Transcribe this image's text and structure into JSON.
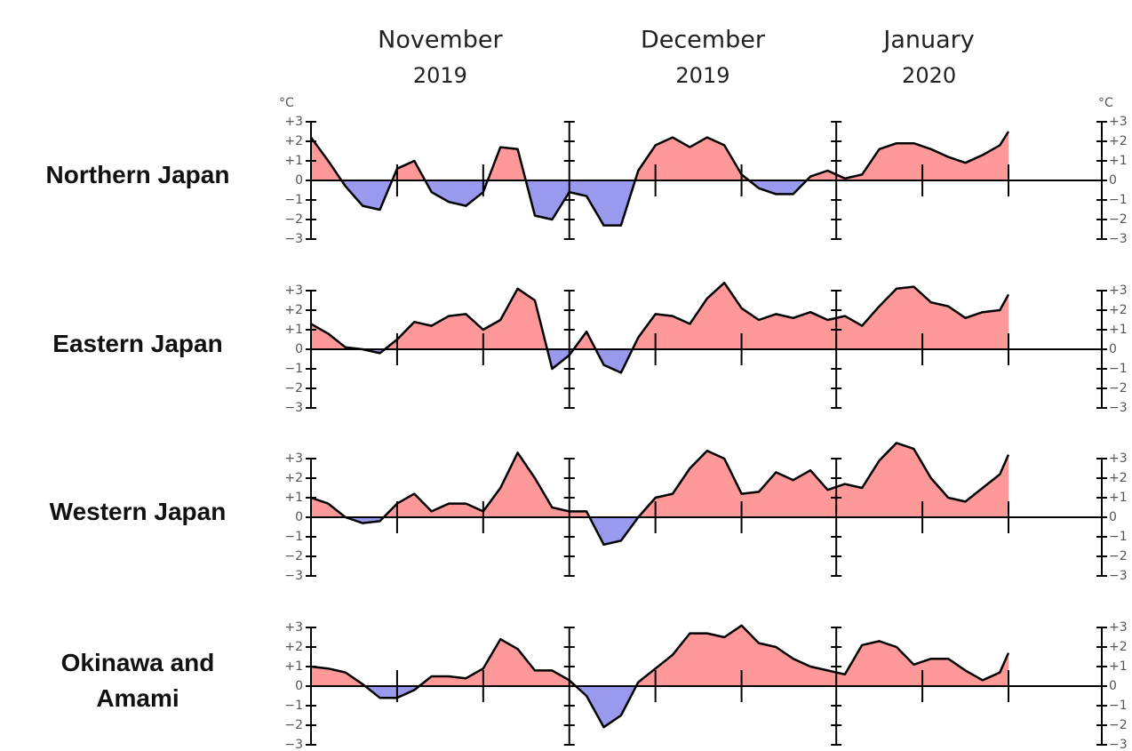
{
  "chart_data": {
    "type": "area",
    "unit": "°C",
    "x": [
      0,
      2,
      4,
      6,
      8,
      10,
      12,
      14,
      16,
      18,
      20,
      22,
      24,
      26,
      28,
      30,
      32,
      34,
      36,
      38,
      40,
      42,
      44,
      46,
      48,
      50,
      52,
      54,
      56,
      58,
      60,
      62,
      64,
      66,
      68,
      70,
      72,
      74,
      76,
      78,
      80,
      81
    ],
    "xlim": [
      0,
      81
    ],
    "xticks": [
      {
        "value": 0,
        "label": "November",
        "year": "2019"
      },
      {
        "value": 30,
        "label": "December",
        "year": "2019"
      },
      {
        "value": 61,
        "label": "January",
        "year": "2020"
      }
    ],
    "xminorticks": [
      10,
      20,
      40,
      50,
      71,
      81
    ],
    "ylim": [
      -3,
      3
    ],
    "yticks": [
      {
        "value": 3,
        "label": "+3"
      },
      {
        "value": 2,
        "label": "+2"
      },
      {
        "value": 1,
        "label": "+1"
      },
      0,
      {
        "value": -1,
        "label": "−1"
      },
      {
        "value": -2,
        "label": "−2"
      },
      {
        "value": -3,
        "label": "−3"
      }
    ],
    "positive_color": "#ff9999",
    "negative_color": "#9999ee",
    "panels": [
      {
        "title": "Northern Japan",
        "values": [
          2.2,
          1.0,
          -0.3,
          -1.3,
          -1.5,
          0.6,
          1.0,
          -0.6,
          -1.1,
          -1.3,
          -0.6,
          1.7,
          1.6,
          -1.8,
          -2.0,
          -0.6,
          -0.8,
          -2.3,
          -2.3,
          0.5,
          1.8,
          2.2,
          1.7,
          2.2,
          1.8,
          0.3,
          -0.4,
          -0.7,
          -0.7,
          0.2,
          0.5,
          0.1,
          0.3,
          1.6,
          1.9,
          1.9,
          1.6,
          1.2,
          0.9,
          1.3,
          1.8,
          2.5
        ]
      },
      {
        "title": "Eastern Japan",
        "values": [
          1.3,
          0.8,
          0.1,
          0,
          -0.2,
          0.5,
          1.4,
          1.2,
          1.7,
          1.8,
          1.0,
          1.5,
          3.1,
          2.5,
          -1.0,
          -0.3,
          0.9,
          -0.8,
          -1.2,
          0.6,
          1.8,
          1.7,
          1.3,
          2.6,
          3.4,
          2.1,
          1.5,
          1.8,
          1.6,
          1.9,
          1.5,
          1.7,
          1.2,
          2.2,
          3.1,
          3.2,
          2.4,
          2.2,
          1.6,
          1.9,
          2.0,
          2.8
        ]
      },
      {
        "title": "Western Japan",
        "values": [
          1.0,
          0.7,
          0,
          -0.3,
          -0.2,
          0.7,
          1.2,
          0.3,
          0.7,
          0.7,
          0.3,
          1.5,
          3.3,
          2.0,
          0.5,
          0.3,
          0.3,
          -1.4,
          -1.2,
          0.0,
          1.0,
          1.2,
          2.5,
          3.4,
          3.0,
          1.2,
          1.3,
          2.3,
          1.9,
          2.4,
          1.4,
          1.7,
          1.5,
          2.9,
          3.8,
          3.5,
          2.0,
          1.0,
          0.8,
          1.5,
          2.2,
          3.2
        ]
      },
      {
        "title": "Okinawa and Amami",
        "values": [
          1.0,
          0.9,
          0.7,
          0.1,
          -0.6,
          -0.6,
          -0.2,
          0.5,
          0.5,
          0.4,
          0.9,
          2.4,
          1.9,
          0.8,
          0.8,
          0.3,
          -0.5,
          -2.1,
          -1.5,
          0.2,
          0.9,
          1.6,
          2.7,
          2.7,
          2.5,
          3.1,
          2.2,
          2.0,
          1.4,
          1.0,
          0.8,
          0.6,
          2.1,
          2.3,
          2.0,
          1.1,
          1.4,
          1.4,
          0.8,
          0.3,
          0.7,
          1.7
        ]
      }
    ]
  }
}
